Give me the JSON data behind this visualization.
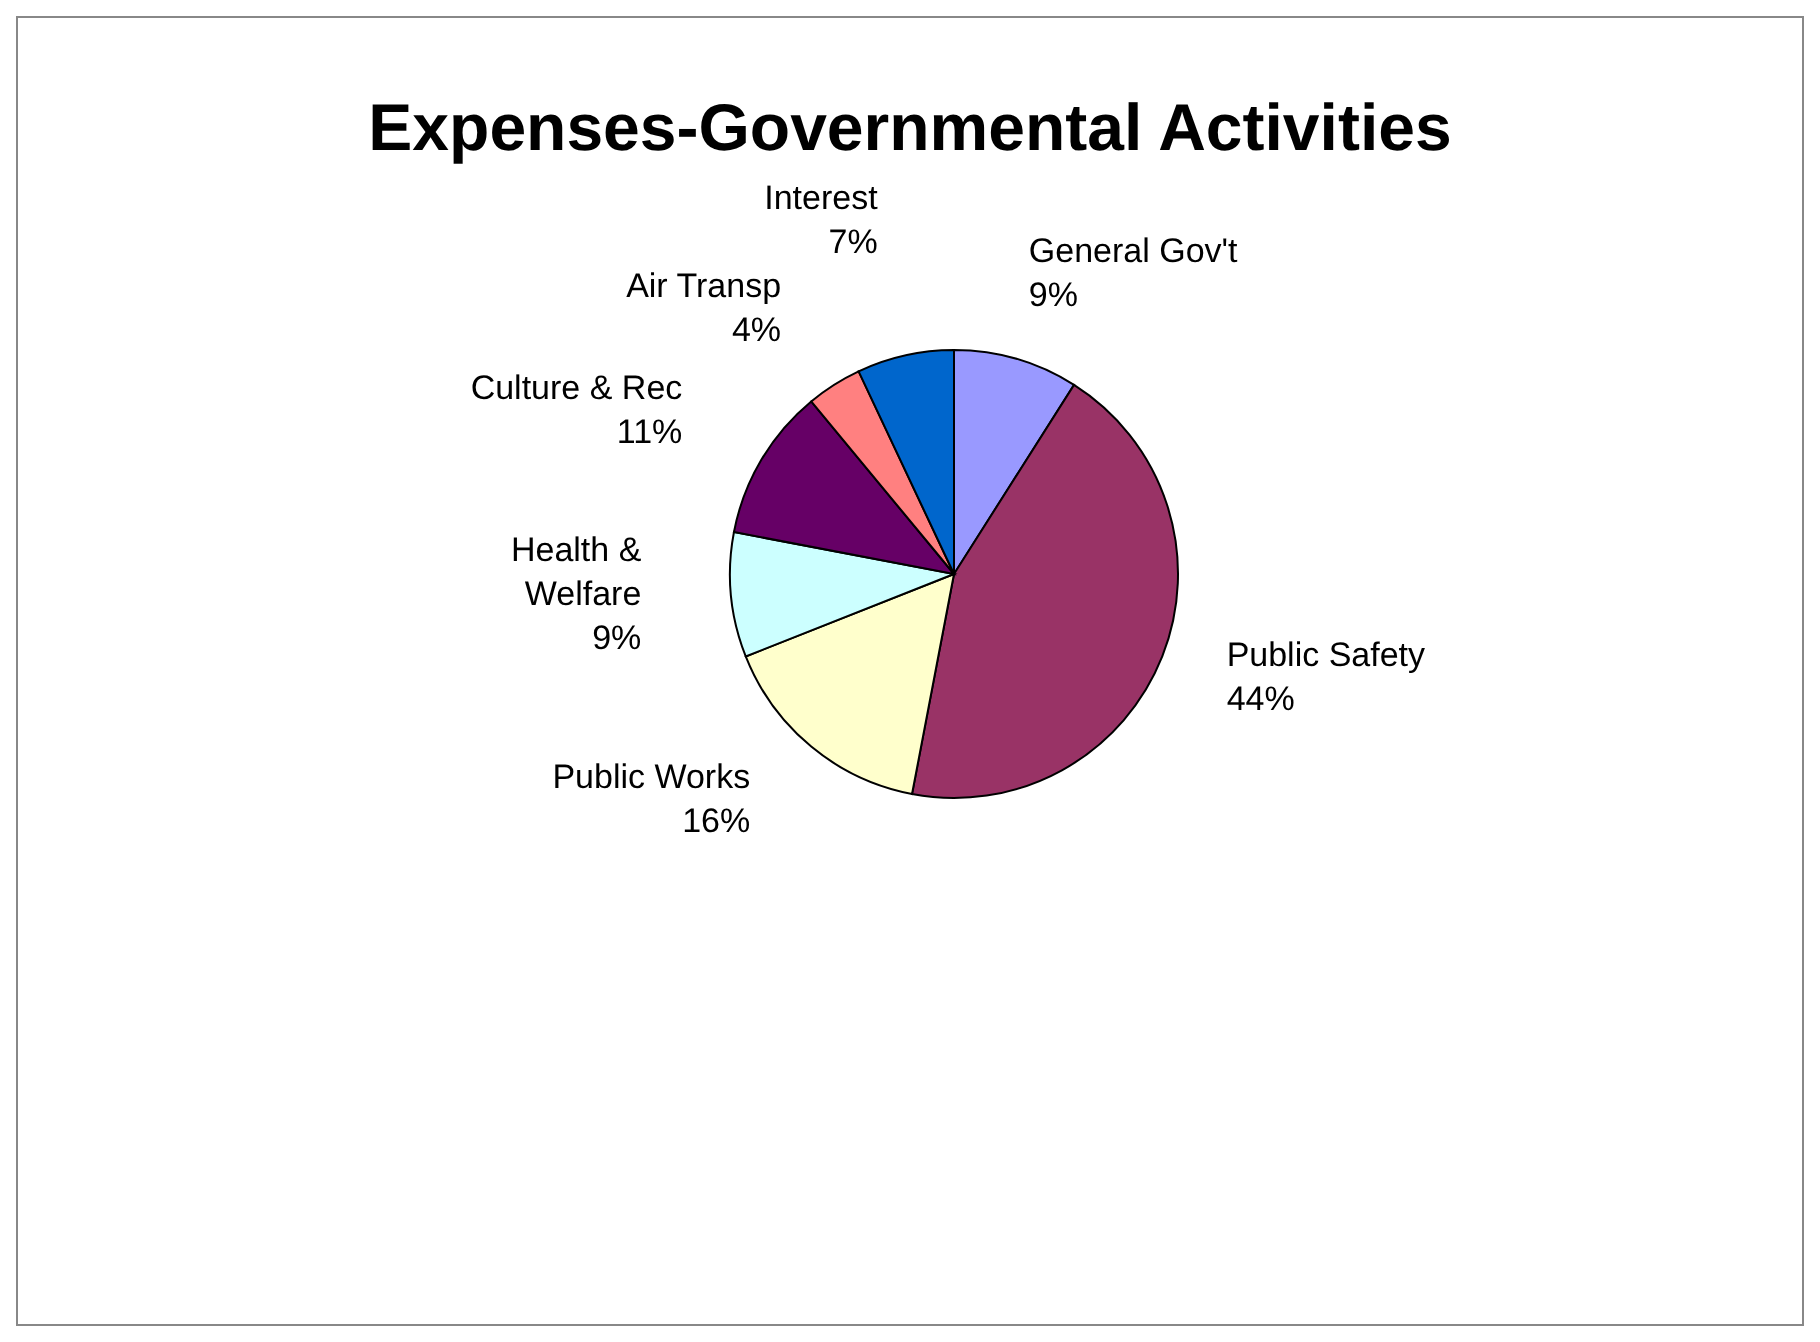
{
  "chart_data": {
    "type": "pie",
    "title": "Expenses-Governmental Activities",
    "categories": [
      "General  Gov't",
      "Public Safety",
      "Public Works",
      "Health & Welfare",
      "Culture & Rec",
      "Air Transp",
      "Interest"
    ],
    "values": [
      9,
      44,
      16,
      9,
      11,
      4,
      7
    ],
    "colors": [
      "#9999ff",
      "#993366",
      "#ffffcc",
      "#ccffff",
      "#660066",
      "#ff8080",
      "#0066cc"
    ],
    "value_labels": [
      "9%",
      "44%",
      "16%",
      "9%",
      "11%",
      "4%",
      "7%"
    ],
    "legend": false
  }
}
